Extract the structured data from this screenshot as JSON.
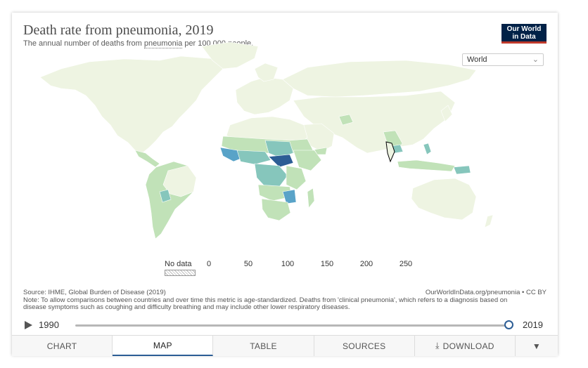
{
  "header": {
    "title": "Death rate from pneumonia, 2019",
    "subtitle_prefix": "The annual number of deaths from ",
    "subtitle_link": "pneumonia",
    "subtitle_suffix": " per 100,000 people.",
    "logo_line1": "Our World",
    "logo_line2": "in Data"
  },
  "region_select": {
    "value": "World",
    "icon": "chevron-down-icon"
  },
  "legend": {
    "no_data_label": "No data",
    "ticks": [
      "0",
      "50",
      "100",
      "150",
      "200",
      "250"
    ],
    "colors": [
      "#eef4e2",
      "#c1e2b8",
      "#86c6bc",
      "#59a3c8",
      "#2c5d95"
    ]
  },
  "map_data": {
    "metric": "Deaths from pneumonia per 100,000 people",
    "year": "2019",
    "scale_min": 0,
    "scale_max": 250
  },
  "footer": {
    "source": "Source: IHME, Global Burden of Disease (2019)",
    "attribution": "OurWorldInData.org/pneumonia • CC BY",
    "note": "Note: To allow comparisons between countries and over time this metric is age-standardized. Deaths from 'clinical pneumonia', which refers to a diagnosis based on disease symptoms such as coughing and difficulty breathing and may include other lower respiratory diseases."
  },
  "timeline": {
    "start_year": "1990",
    "end_year": "2019",
    "selected_fraction": 1.0,
    "play_icon": "play-icon"
  },
  "tabs": [
    {
      "label": "CHART"
    },
    {
      "label": "MAP"
    },
    {
      "label": "TABLE"
    },
    {
      "label": "SOURCES"
    },
    {
      "label": "DOWNLOAD",
      "icon": "download-icon"
    },
    {
      "label": "",
      "icon": "share-icon"
    }
  ]
}
